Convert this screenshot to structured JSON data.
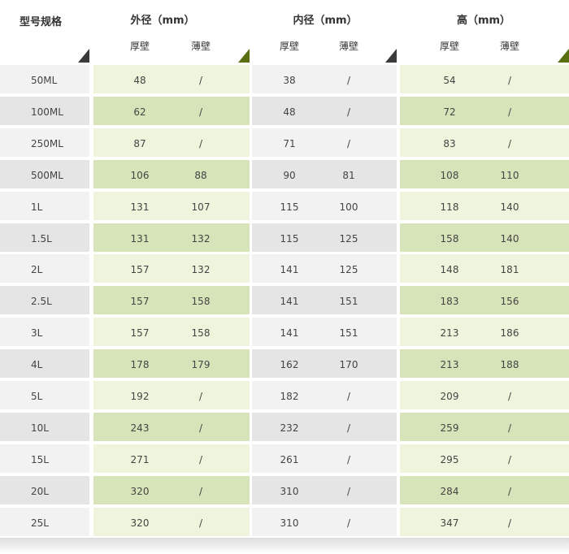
{
  "header": {
    "model": "型号规格",
    "groups": [
      {
        "label": "外径（mm）"
      },
      {
        "label": "内径（mm）"
      },
      {
        "label": "高（mm）"
      }
    ],
    "thick": "厚壁",
    "thin": "薄壁"
  },
  "colors": {
    "grey_light": "#f2f2f2",
    "grey_dark": "#e5e5e5",
    "green_light": "#eef5dc",
    "green_dark": "#d7e4b9"
  },
  "rows": [
    {
      "model": "50ML",
      "od_thick": "48",
      "od_thin": "/",
      "id_thick": "38",
      "id_thin": "/",
      "h_thick": "54",
      "h_thin": "/"
    },
    {
      "model": "100ML",
      "od_thick": "62",
      "od_thin": "/",
      "id_thick": "48",
      "id_thin": "/",
      "h_thick": "72",
      "h_thin": "/"
    },
    {
      "model": "250ML",
      "od_thick": "87",
      "od_thin": "/",
      "id_thick": "71",
      "id_thin": "/",
      "h_thick": "83",
      "h_thin": "/"
    },
    {
      "model": "500ML",
      "od_thick": "106",
      "od_thin": "88",
      "id_thick": "90",
      "id_thin": "81",
      "h_thick": "108",
      "h_thin": "110"
    },
    {
      "model": "1L",
      "od_thick": "131",
      "od_thin": "107",
      "id_thick": "115",
      "id_thin": "100",
      "h_thick": "118",
      "h_thin": "140"
    },
    {
      "model": "1.5L",
      "od_thick": "131",
      "od_thin": "132",
      "id_thick": "115",
      "id_thin": "125",
      "h_thick": "158",
      "h_thin": "140"
    },
    {
      "model": "2L",
      "od_thick": "157",
      "od_thin": "132",
      "id_thick": "141",
      "id_thin": "125",
      "h_thick": "148",
      "h_thin": "181"
    },
    {
      "model": "2.5L",
      "od_thick": "157",
      "od_thin": "158",
      "id_thick": "141",
      "id_thin": "151",
      "h_thick": "183",
      "h_thin": "156"
    },
    {
      "model": "3L",
      "od_thick": "157",
      "od_thin": "158",
      "id_thick": "141",
      "id_thin": "151",
      "h_thick": "213",
      "h_thin": "186"
    },
    {
      "model": "4L",
      "od_thick": "178",
      "od_thin": "179",
      "id_thick": "162",
      "id_thin": "170",
      "h_thick": "213",
      "h_thin": "188"
    },
    {
      "model": "5L",
      "od_thick": "192",
      "od_thin": "/",
      "id_thick": "182",
      "id_thin": "/",
      "h_thick": "209",
      "h_thin": "/"
    },
    {
      "model": "10L",
      "od_thick": "243",
      "od_thin": "/",
      "id_thick": "232",
      "id_thin": "/",
      "h_thick": "259",
      "h_thin": "/"
    },
    {
      "model": "15L",
      "od_thick": "271",
      "od_thin": "/",
      "id_thick": "261",
      "id_thin": "/",
      "h_thick": "295",
      "h_thin": "/"
    },
    {
      "model": "20L",
      "od_thick": "320",
      "od_thin": "/",
      "id_thick": "310",
      "id_thin": "/",
      "h_thick": "284",
      "h_thin": "/"
    },
    {
      "model": "25L",
      "od_thick": "320",
      "od_thin": "/",
      "id_thick": "310",
      "id_thin": "/",
      "h_thick": "347",
      "h_thin": "/"
    }
  ]
}
